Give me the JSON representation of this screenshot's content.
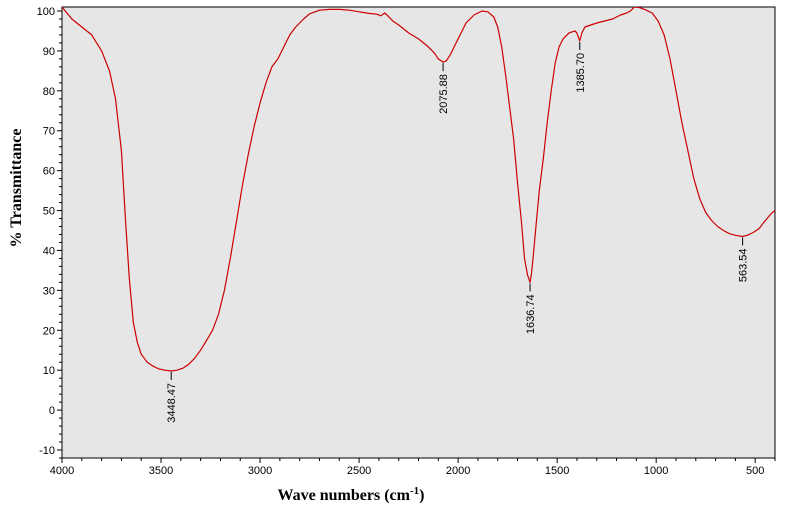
{
  "chart_data": {
    "type": "line",
    "title": "",
    "xlabel": "Wave numbers (cm",
    "xlabel_sup": "-1",
    "xlabel_close": ")",
    "ylabel": "% Transmittance",
    "xlim": [
      4000,
      400
    ],
    "ylim": [
      -12,
      101
    ],
    "x_reversed": true,
    "grid": false,
    "legend": "none",
    "x_ticks": [
      4000,
      3500,
      3000,
      2500,
      2000,
      1500,
      1000,
      500
    ],
    "x_tick_labels": [
      "4000",
      "3500",
      "3000",
      "2500",
      "2000",
      "1500",
      "1000",
      "500"
    ],
    "y_ticks": [
      100,
      90,
      80,
      70,
      60,
      50,
      40,
      30,
      20,
      10,
      0,
      -10
    ],
    "y_tick_labels": [
      "100",
      "90",
      "80",
      "70",
      "60",
      "50",
      "40",
      "30",
      "20",
      "10",
      "0",
      "-10"
    ],
    "series": [
      {
        "color": "#cc0000",
        "points": [
          [
            4000,
            101
          ],
          [
            3950,
            98
          ],
          [
            3900,
            96
          ],
          [
            3850,
            94
          ],
          [
            3800,
            90
          ],
          [
            3760,
            85
          ],
          [
            3730,
            78
          ],
          [
            3700,
            65
          ],
          [
            3680,
            48
          ],
          [
            3660,
            33
          ],
          [
            3640,
            22
          ],
          [
            3620,
            17
          ],
          [
            3600,
            14
          ],
          [
            3570,
            12
          ],
          [
            3540,
            11
          ],
          [
            3510,
            10.3
          ],
          [
            3480,
            10
          ],
          [
            3448,
            9.8
          ],
          [
            3420,
            10
          ],
          [
            3390,
            10.5
          ],
          [
            3360,
            11.5
          ],
          [
            3330,
            13
          ],
          [
            3300,
            15
          ],
          [
            3270,
            17.5
          ],
          [
            3240,
            20
          ],
          [
            3210,
            24
          ],
          [
            3180,
            30
          ],
          [
            3150,
            38
          ],
          [
            3120,
            47
          ],
          [
            3090,
            56
          ],
          [
            3060,
            64
          ],
          [
            3030,
            71
          ],
          [
            3000,
            77
          ],
          [
            2970,
            82
          ],
          [
            2940,
            86
          ],
          [
            2910,
            88
          ],
          [
            2880,
            91
          ],
          [
            2850,
            94
          ],
          [
            2820,
            96
          ],
          [
            2780,
            98
          ],
          [
            2750,
            99.3
          ],
          [
            2700,
            100.2
          ],
          [
            2650,
            100.4
          ],
          [
            2600,
            100.4
          ],
          [
            2550,
            100.2
          ],
          [
            2500,
            99.8
          ],
          [
            2450,
            99.4
          ],
          [
            2410,
            99.2
          ],
          [
            2390,
            98.8
          ],
          [
            2370,
            99.5
          ],
          [
            2355,
            98.8
          ],
          [
            2330,
            97.5
          ],
          [
            2300,
            96.5
          ],
          [
            2250,
            94.5
          ],
          [
            2200,
            93
          ],
          [
            2150,
            91
          ],
          [
            2120,
            89.5
          ],
          [
            2100,
            88
          ],
          [
            2076,
            87.2
          ],
          [
            2060,
            87.5
          ],
          [
            2040,
            89
          ],
          [
            2000,
            93
          ],
          [
            1960,
            97
          ],
          [
            1920,
            99
          ],
          [
            1880,
            100
          ],
          [
            1850,
            99.8
          ],
          [
            1820,
            98.5
          ],
          [
            1800,
            96
          ],
          [
            1780,
            91
          ],
          [
            1760,
            84
          ],
          [
            1740,
            76
          ],
          [
            1720,
            68
          ],
          [
            1700,
            57
          ],
          [
            1680,
            47
          ],
          [
            1665,
            38
          ],
          [
            1650,
            34
          ],
          [
            1637,
            32
          ],
          [
            1630,
            34
          ],
          [
            1620,
            39
          ],
          [
            1605,
            47
          ],
          [
            1590,
            55
          ],
          [
            1570,
            63
          ],
          [
            1550,
            72
          ],
          [
            1530,
            80
          ],
          [
            1510,
            87
          ],
          [
            1490,
            91
          ],
          [
            1470,
            93
          ],
          [
            1440,
            94.5
          ],
          [
            1410,
            95
          ],
          [
            1400,
            94.5
          ],
          [
            1386,
            92.5
          ],
          [
            1375,
            94.5
          ],
          [
            1360,
            96
          ],
          [
            1330,
            96.5
          ],
          [
            1300,
            97
          ],
          [
            1260,
            97.5
          ],
          [
            1220,
            98
          ],
          [
            1180,
            99
          ],
          [
            1150,
            99.5
          ],
          [
            1130,
            100
          ],
          [
            1110,
            101
          ],
          [
            1080,
            100.8
          ],
          [
            1050,
            100.2
          ],
          [
            1020,
            99.5
          ],
          [
            990,
            97.5
          ],
          [
            960,
            94
          ],
          [
            930,
            88
          ],
          [
            900,
            80
          ],
          [
            870,
            72
          ],
          [
            840,
            65
          ],
          [
            810,
            58
          ],
          [
            780,
            53
          ],
          [
            750,
            49.5
          ],
          [
            720,
            47.5
          ],
          [
            690,
            46
          ],
          [
            660,
            45
          ],
          [
            630,
            44.2
          ],
          [
            600,
            43.8
          ],
          [
            564,
            43.5
          ],
          [
            540,
            43.8
          ],
          [
            510,
            44.5
          ],
          [
            480,
            45.5
          ],
          [
            460,
            46.8
          ],
          [
            440,
            48
          ],
          [
            420,
            49.2
          ],
          [
            400,
            50
          ]
        ]
      }
    ],
    "annotations": [
      {
        "x": 3448.47,
        "y": 9.8,
        "label": "3448.47"
      },
      {
        "x": 2075.88,
        "y": 87.2,
        "label": "2075.88"
      },
      {
        "x": 1636.74,
        "y": 32,
        "label": "1636.74"
      },
      {
        "x": 1385.7,
        "y": 92.5,
        "label": "1385.70"
      },
      {
        "x": 563.54,
        "y": 43.5,
        "label": "563.54"
      }
    ]
  }
}
